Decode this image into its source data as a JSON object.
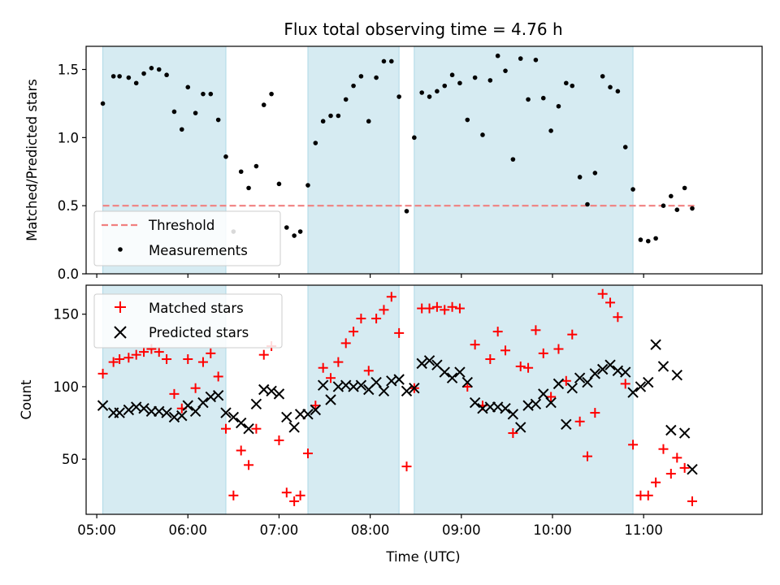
{
  "chart_data": [
    {
      "type": "scatter",
      "title": "Flux total observing time = 4.76 h",
      "xlabel": "",
      "ylabel": "Matched/Predicted stars",
      "ylim": [
        0,
        1.67
      ],
      "yticks": [
        "0.0",
        "0.5",
        "1.0",
        "1.5"
      ],
      "xlim": [
        "04:53",
        "12:18"
      ],
      "x_tick_values": [
        "05:00",
        "06:00",
        "07:00",
        "08:00",
        "09:00",
        "10:00",
        "11:00"
      ],
      "grid": false,
      "legend": "lower-left",
      "shaded_intervals": [
        [
          "05:04",
          "06:25"
        ],
        [
          "07:19",
          "08:19"
        ],
        [
          "08:29",
          "10:53"
        ]
      ],
      "threshold": {
        "name": "Threshold",
        "value": 0.5,
        "from": "05:04",
        "to": "11:35",
        "color": "#f08080"
      },
      "series": [
        {
          "name": "Measurements",
          "color": "#000000",
          "marker": "dot",
          "points": [
            [
              "05:04",
              1.25
            ],
            [
              "05:11",
              1.45
            ],
            [
              "05:15",
              1.45
            ],
            [
              "05:21",
              1.44
            ],
            [
              "05:26",
              1.4
            ],
            [
              "05:31",
              1.47
            ],
            [
              "05:36",
              1.51
            ],
            [
              "05:41",
              1.5
            ],
            [
              "05:46",
              1.46
            ],
            [
              "05:51",
              1.19
            ],
            [
              "05:56",
              1.06
            ],
            [
              "06:00",
              1.37
            ],
            [
              "06:05",
              1.18
            ],
            [
              "06:10",
              1.32
            ],
            [
              "06:15",
              1.32
            ],
            [
              "06:20",
              1.13
            ],
            [
              "06:25",
              0.86
            ],
            [
              "06:30",
              0.31
            ],
            [
              "06:35",
              0.75
            ],
            [
              "06:40",
              0.63
            ],
            [
              "06:45",
              0.79
            ],
            [
              "06:50",
              1.24
            ],
            [
              "06:55",
              1.32
            ],
            [
              "07:00",
              0.66
            ],
            [
              "07:05",
              0.34
            ],
            [
              "07:10",
              0.28
            ],
            [
              "07:14",
              0.31
            ],
            [
              "07:19",
              0.65
            ],
            [
              "07:24",
              0.96
            ],
            [
              "07:29",
              1.12
            ],
            [
              "07:34",
              1.16
            ],
            [
              "07:39",
              1.16
            ],
            [
              "07:44",
              1.28
            ],
            [
              "07:49",
              1.38
            ],
            [
              "07:54",
              1.45
            ],
            [
              "07:59",
              1.12
            ],
            [
              "08:04",
              1.44
            ],
            [
              "08:09",
              1.56
            ],
            [
              "08:14",
              1.56
            ],
            [
              "08:19",
              1.3
            ],
            [
              "08:24",
              0.46
            ],
            [
              "08:29",
              1.0
            ],
            [
              "08:34",
              1.33
            ],
            [
              "08:39",
              1.3
            ],
            [
              "08:44",
              1.34
            ],
            [
              "08:49",
              1.38
            ],
            [
              "08:54",
              1.46
            ],
            [
              "08:59",
              1.4
            ],
            [
              "09:04",
              1.13
            ],
            [
              "09:09",
              1.44
            ],
            [
              "09:14",
              1.02
            ],
            [
              "09:19",
              1.42
            ],
            [
              "09:24",
              1.6
            ],
            [
              "09:29",
              1.49
            ],
            [
              "09:34",
              0.84
            ],
            [
              "09:39",
              1.58
            ],
            [
              "09:44",
              1.28
            ],
            [
              "09:49",
              1.57
            ],
            [
              "09:54",
              1.29
            ],
            [
              "09:59",
              1.05
            ],
            [
              "10:04",
              1.23
            ],
            [
              "10:09",
              1.4
            ],
            [
              "10:13",
              1.38
            ],
            [
              "10:18",
              0.71
            ],
            [
              "10:23",
              0.51
            ],
            [
              "10:28",
              0.74
            ],
            [
              "10:33",
              1.45
            ],
            [
              "10:38",
              1.37
            ],
            [
              "10:43",
              1.34
            ],
            [
              "10:48",
              0.93
            ],
            [
              "10:53",
              0.62
            ],
            [
              "10:58",
              0.25
            ],
            [
              "11:03",
              0.24
            ],
            [
              "11:08",
              0.26
            ],
            [
              "11:13",
              0.5
            ],
            [
              "11:18",
              0.57
            ],
            [
              "11:22",
              0.47
            ],
            [
              "11:27",
              0.63
            ],
            [
              "11:32",
              0.48
            ]
          ]
        }
      ]
    },
    {
      "type": "scatter",
      "title": "",
      "xlabel": "Time (UTC)",
      "ylabel": "Count",
      "ylim": [
        12,
        170
      ],
      "yticks": [
        "50",
        "100",
        "150"
      ],
      "xlim": [
        "04:53",
        "12:18"
      ],
      "x_tick_labels": [
        "05:00",
        "06:00",
        "07:00",
        "08:00",
        "09:00",
        "10:00",
        "11:00"
      ],
      "grid": false,
      "legend": "upper-left",
      "shaded_intervals": [
        [
          "05:04",
          "06:25"
        ],
        [
          "07:19",
          "08:19"
        ],
        [
          "08:29",
          "10:53"
        ]
      ],
      "series": [
        {
          "name": "Matched stars",
          "color": "#ff0000",
          "marker": "plus",
          "points": [
            [
              "05:04",
              109
            ],
            [
              "05:11",
              117
            ],
            [
              "05:15",
              119
            ],
            [
              "05:21",
              120
            ],
            [
              "05:26",
              122
            ],
            [
              "05:31",
              124
            ],
            [
              "05:36",
              126
            ],
            [
              "05:41",
              124
            ],
            [
              "05:46",
              119
            ],
            [
              "05:51",
              95
            ],
            [
              "05:56",
              85
            ],
            [
              "06:00",
              119
            ],
            [
              "06:05",
              99
            ],
            [
              "06:10",
              117
            ],
            [
              "06:15",
              123
            ],
            [
              "06:20",
              107
            ],
            [
              "06:25",
              71
            ],
            [
              "06:30",
              25
            ],
            [
              "06:35",
              56
            ],
            [
              "06:40",
              46
            ],
            [
              "06:45",
              71
            ],
            [
              "06:50",
              122
            ],
            [
              "06:55",
              128
            ],
            [
              "07:00",
              63
            ],
            [
              "07:05",
              27
            ],
            [
              "07:10",
              21
            ],
            [
              "07:14",
              25
            ],
            [
              "07:19",
              54
            ],
            [
              "07:24",
              87
            ],
            [
              "07:29",
              113
            ],
            [
              "07:34",
              106
            ],
            [
              "07:39",
              117
            ],
            [
              "07:44",
              130
            ],
            [
              "07:49",
              138
            ],
            [
              "07:54",
              147
            ],
            [
              "07:59",
              111
            ],
            [
              "08:04",
              147
            ],
            [
              "08:09",
              153
            ],
            [
              "08:14",
              162
            ],
            [
              "08:19",
              137
            ],
            [
              "08:24",
              45
            ],
            [
              "08:29",
              99
            ],
            [
              "08:34",
              154
            ],
            [
              "08:39",
              154
            ],
            [
              "08:44",
              155
            ],
            [
              "08:49",
              153
            ],
            [
              "08:54",
              155
            ],
            [
              "08:59",
              154
            ],
            [
              "09:04",
              100
            ],
            [
              "09:09",
              129
            ],
            [
              "09:14",
              87
            ],
            [
              "09:19",
              119
            ],
            [
              "09:24",
              138
            ],
            [
              "09:29",
              125
            ],
            [
              "09:34",
              68
            ],
            [
              "09:39",
              114
            ],
            [
              "09:44",
              113
            ],
            [
              "09:49",
              139
            ],
            [
              "09:54",
              123
            ],
            [
              "09:59",
              93
            ],
            [
              "10:04",
              126
            ],
            [
              "10:09",
              104
            ],
            [
              "10:13",
              136
            ],
            [
              "10:18",
              76
            ],
            [
              "10:23",
              52
            ],
            [
              "10:28",
              82
            ],
            [
              "10:33",
              164
            ],
            [
              "10:38",
              158
            ],
            [
              "10:43",
              148
            ],
            [
              "10:48",
              102
            ],
            [
              "10:53",
              60
            ],
            [
              "10:58",
              25
            ],
            [
              "11:03",
              25
            ],
            [
              "11:08",
              34
            ],
            [
              "11:13",
              57
            ],
            [
              "11:18",
              40
            ],
            [
              "11:22",
              51
            ],
            [
              "11:27",
              44
            ],
            [
              "11:32",
              21
            ]
          ]
        },
        {
          "name": "Predicted stars",
          "color": "#000000",
          "marker": "x",
          "points": [
            [
              "05:04",
              87
            ],
            [
              "05:11",
              82
            ],
            [
              "05:15",
              82
            ],
            [
              "05:21",
              84
            ],
            [
              "05:26",
              86
            ],
            [
              "05:31",
              85
            ],
            [
              "05:36",
              83
            ],
            [
              "05:41",
              83
            ],
            [
              "05:46",
              82
            ],
            [
              "05:51",
              79
            ],
            [
              "05:56",
              80
            ],
            [
              "06:00",
              87
            ],
            [
              "06:05",
              83
            ],
            [
              "06:10",
              89
            ],
            [
              "06:15",
              93
            ],
            [
              "06:20",
              94
            ],
            [
              "06:25",
              82
            ],
            [
              "06:30",
              79
            ],
            [
              "06:35",
              75
            ],
            [
              "06:40",
              71
            ],
            [
              "06:45",
              88
            ],
            [
              "06:50",
              98
            ],
            [
              "06:55",
              97
            ],
            [
              "07:00",
              95
            ],
            [
              "07:05",
              79
            ],
            [
              "07:10",
              72
            ],
            [
              "07:14",
              81
            ],
            [
              "07:19",
              81
            ],
            [
              "07:24",
              84
            ],
            [
              "07:29",
              101
            ],
            [
              "07:34",
              91
            ],
            [
              "07:39",
              100
            ],
            [
              "07:44",
              101
            ],
            [
              "07:49",
              100
            ],
            [
              "07:54",
              101
            ],
            [
              "07:59",
              98
            ],
            [
              "08:04",
              103
            ],
            [
              "08:09",
              97
            ],
            [
              "08:14",
              104
            ],
            [
              "08:19",
              105
            ],
            [
              "08:24",
              97
            ],
            [
              "08:29",
              99
            ],
            [
              "08:34",
              116
            ],
            [
              "08:39",
              118
            ],
            [
              "08:44",
              115
            ],
            [
              "08:49",
              110
            ],
            [
              "08:54",
              106
            ],
            [
              "08:59",
              110
            ],
            [
              "09:04",
              103
            ],
            [
              "09:09",
              89
            ],
            [
              "09:14",
              85
            ],
            [
              "09:19",
              86
            ],
            [
              "09:24",
              86
            ],
            [
              "09:29",
              85
            ],
            [
              "09:34",
              81
            ],
            [
              "09:39",
              72
            ],
            [
              "09:44",
              87
            ],
            [
              "09:49",
              88
            ],
            [
              "09:54",
              95
            ],
            [
              "09:59",
              89
            ],
            [
              "10:04",
              102
            ],
            [
              "10:09",
              74
            ],
            [
              "10:13",
              99
            ],
            [
              "10:18",
              106
            ],
            [
              "10:23",
              103
            ],
            [
              "10:28",
              109
            ],
            [
              "10:33",
              112
            ],
            [
              "10:38",
              115
            ],
            [
              "10:43",
              111
            ],
            [
              "10:48",
              110
            ],
            [
              "10:53",
              96
            ],
            [
              "10:58",
              100
            ],
            [
              "11:03",
              103
            ],
            [
              "11:08",
              129
            ],
            [
              "11:13",
              114
            ],
            [
              "11:18",
              70
            ],
            [
              "11:22",
              108
            ],
            [
              "11:27",
              68
            ],
            [
              "11:32",
              43
            ]
          ]
        }
      ]
    }
  ]
}
